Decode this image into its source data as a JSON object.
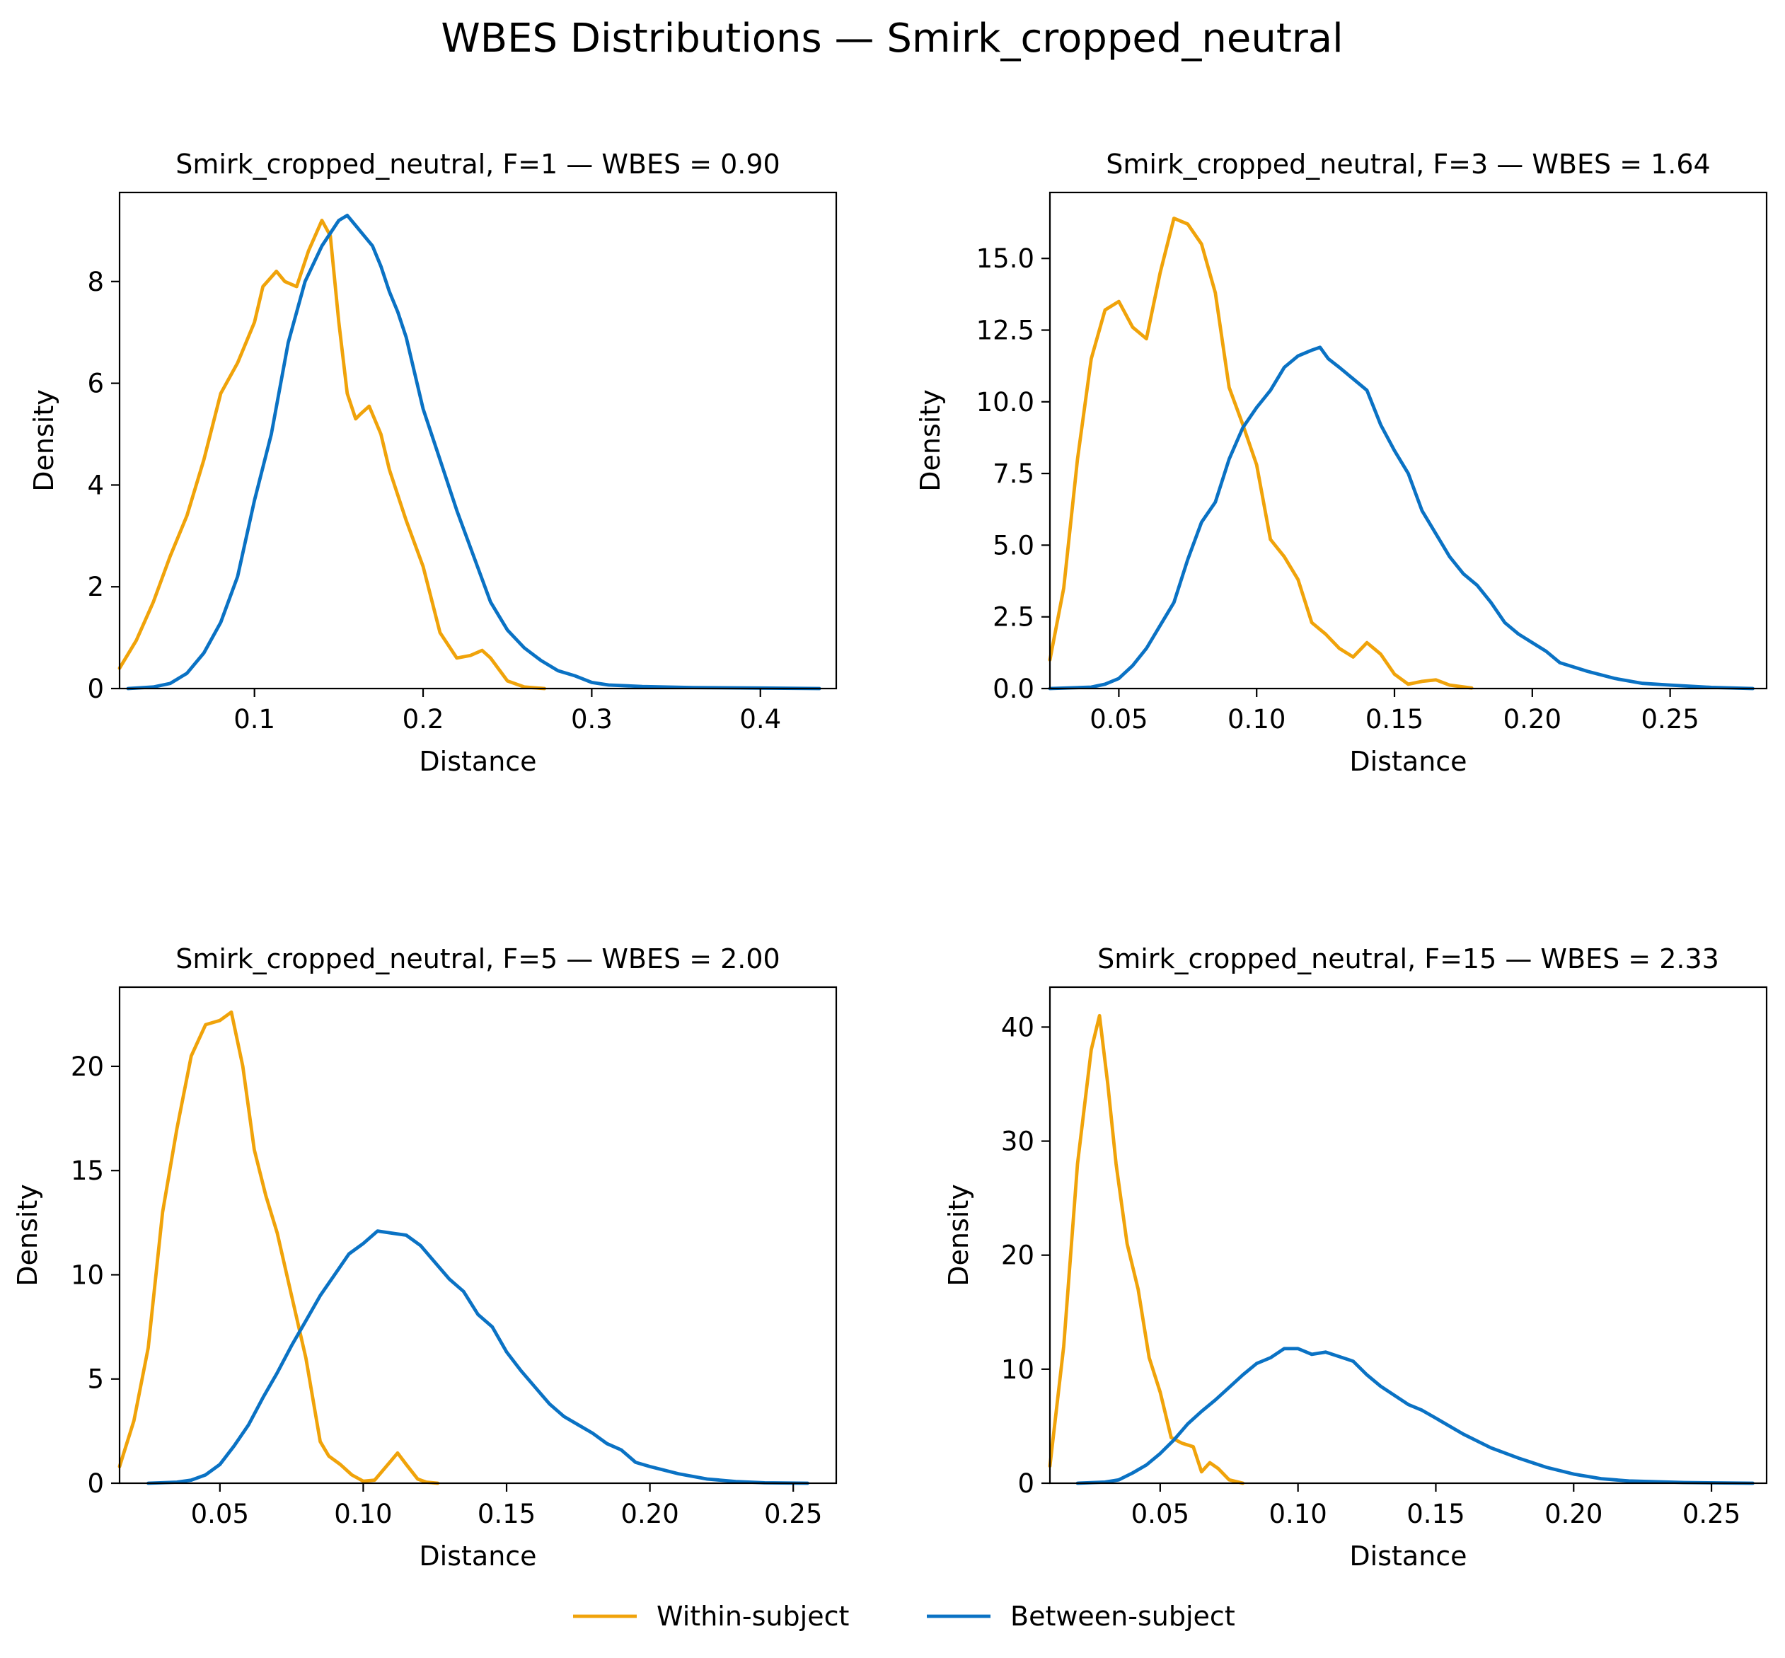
{
  "suptitle": "WBES Distributions — Smirk_cropped_neutral",
  "colors": {
    "within": "#f0a30a",
    "between": "#0a72c4"
  },
  "legend": {
    "placement": "bottom-center",
    "within_label": "Within-subject",
    "between_label": "Between-subject"
  },
  "chart_data": [
    {
      "type": "line",
      "title": "Smirk_cropped_neutral, F=1 — WBES = 0.90",
      "xlabel": "Distance",
      "ylabel": "Density",
      "xlim": [
        0.02,
        0.445
      ],
      "ylim": [
        0,
        9.75
      ],
      "xticks": [
        0.1,
        0.2,
        0.3,
        0.4
      ],
      "xtick_labels": [
        "0.1",
        "0.2",
        "0.3",
        "0.4"
      ],
      "yticks": [
        0,
        2,
        4,
        6,
        8
      ],
      "ytick_labels": [
        "0",
        "2",
        "4",
        "6",
        "8"
      ],
      "grid": false,
      "series": [
        {
          "name": "Within-subject",
          "color": "#f0a30a",
          "x": [
            0.02,
            0.03,
            0.04,
            0.05,
            0.06,
            0.07,
            0.08,
            0.09,
            0.1,
            0.105,
            0.113,
            0.118,
            0.125,
            0.132,
            0.14,
            0.145,
            0.15,
            0.155,
            0.16,
            0.163,
            0.168,
            0.175,
            0.18,
            0.19,
            0.2,
            0.21,
            0.22,
            0.228,
            0.235,
            0.24,
            0.25,
            0.26,
            0.272
          ],
          "y": [
            0.4,
            0.95,
            1.7,
            2.6,
            3.4,
            4.5,
            5.8,
            6.4,
            7.2,
            7.9,
            8.2,
            8.0,
            7.9,
            8.6,
            9.2,
            8.9,
            7.2,
            5.8,
            5.3,
            5.4,
            5.55,
            5.0,
            4.3,
            3.3,
            2.4,
            1.1,
            0.6,
            0.65,
            0.75,
            0.6,
            0.15,
            0.03,
            0
          ]
        },
        {
          "name": "Between-subject",
          "color": "#0a72c4",
          "x": [
            0.025,
            0.04,
            0.05,
            0.06,
            0.07,
            0.08,
            0.09,
            0.1,
            0.11,
            0.12,
            0.13,
            0.14,
            0.15,
            0.155,
            0.16,
            0.165,
            0.17,
            0.175,
            0.18,
            0.185,
            0.19,
            0.2,
            0.21,
            0.22,
            0.23,
            0.24,
            0.25,
            0.26,
            0.27,
            0.28,
            0.29,
            0.3,
            0.31,
            0.33,
            0.36,
            0.4,
            0.435
          ],
          "y": [
            0,
            0.03,
            0.1,
            0.3,
            0.7,
            1.3,
            2.2,
            3.7,
            5.0,
            6.8,
            8.0,
            8.7,
            9.2,
            9.3,
            9.1,
            8.9,
            8.7,
            8.3,
            7.8,
            7.4,
            6.9,
            5.5,
            4.5,
            3.5,
            2.6,
            1.7,
            1.15,
            0.8,
            0.55,
            0.35,
            0.25,
            0.12,
            0.07,
            0.04,
            0.02,
            0.01,
            0
          ]
        }
      ]
    },
    {
      "type": "line",
      "title": "Smirk_cropped_neutral, F=3 — WBES = 1.64",
      "xlabel": "Distance",
      "ylabel": "Density",
      "xlim": [
        0.025,
        0.285
      ],
      "ylim": [
        0,
        17.3
      ],
      "xticks": [
        0.05,
        0.1,
        0.15,
        0.2,
        0.25
      ],
      "xtick_labels": [
        "0.05",
        "0.10",
        "0.15",
        "0.20",
        "0.25"
      ],
      "yticks": [
        0,
        2.5,
        5,
        7.5,
        10,
        12.5,
        15
      ],
      "ytick_labels": [
        "0.0",
        "2.5",
        "5.0",
        "7.5",
        "10.0",
        "12.5",
        "15.0"
      ],
      "grid": false,
      "series": [
        {
          "name": "Within-subject",
          "color": "#f0a30a",
          "x": [
            0.025,
            0.03,
            0.035,
            0.04,
            0.045,
            0.05,
            0.055,
            0.06,
            0.065,
            0.07,
            0.075,
            0.08,
            0.085,
            0.09,
            0.095,
            0.1,
            0.105,
            0.11,
            0.115,
            0.12,
            0.125,
            0.13,
            0.135,
            0.14,
            0.145,
            0.15,
            0.155,
            0.16,
            0.165,
            0.17,
            0.178
          ],
          "y": [
            1.0,
            3.5,
            8.0,
            11.5,
            13.2,
            13.5,
            12.6,
            12.2,
            14.5,
            16.4,
            16.2,
            15.5,
            13.8,
            10.5,
            9.2,
            7.8,
            5.2,
            4.6,
            3.8,
            2.3,
            1.9,
            1.4,
            1.1,
            1.6,
            1.2,
            0.5,
            0.15,
            0.25,
            0.3,
            0.12,
            0.02
          ]
        },
        {
          "name": "Between-subject",
          "color": "#0a72c4",
          "x": [
            0.025,
            0.04,
            0.045,
            0.05,
            0.055,
            0.06,
            0.065,
            0.07,
            0.075,
            0.08,
            0.085,
            0.09,
            0.095,
            0.1,
            0.105,
            0.11,
            0.115,
            0.12,
            0.123,
            0.126,
            0.13,
            0.135,
            0.14,
            0.145,
            0.15,
            0.155,
            0.16,
            0.165,
            0.17,
            0.175,
            0.18,
            0.185,
            0.19,
            0.195,
            0.2,
            0.205,
            0.21,
            0.22,
            0.23,
            0.24,
            0.25,
            0.265,
            0.28
          ],
          "y": [
            0,
            0.05,
            0.15,
            0.35,
            0.8,
            1.4,
            2.2,
            3.0,
            4.5,
            5.8,
            6.5,
            8.0,
            9.1,
            9.8,
            10.4,
            11.2,
            11.6,
            11.8,
            11.9,
            11.5,
            11.2,
            10.8,
            10.4,
            9.2,
            8.3,
            7.5,
            6.2,
            5.4,
            4.6,
            4.0,
            3.6,
            3.0,
            2.3,
            1.9,
            1.6,
            1.3,
            0.9,
            0.6,
            0.35,
            0.18,
            0.12,
            0.04,
            0
          ]
        }
      ]
    },
    {
      "type": "line",
      "title": "Smirk_cropped_neutral, F=5 — WBES = 2.00",
      "xlabel": "Distance",
      "ylabel": "Density",
      "xlim": [
        0.015,
        0.265
      ],
      "ylim": [
        0,
        23.8
      ],
      "xticks": [
        0.05,
        0.1,
        0.15,
        0.2,
        0.25
      ],
      "xtick_labels": [
        "0.05",
        "0.10",
        "0.15",
        "0.20",
        "0.25"
      ],
      "yticks": [
        0,
        5,
        10,
        15,
        20
      ],
      "ytick_labels": [
        "0",
        "5",
        "10",
        "15",
        "20"
      ],
      "grid": false,
      "series": [
        {
          "name": "Within-subject",
          "color": "#f0a30a",
          "x": [
            0.015,
            0.02,
            0.025,
            0.03,
            0.035,
            0.04,
            0.045,
            0.05,
            0.054,
            0.058,
            0.062,
            0.066,
            0.07,
            0.075,
            0.08,
            0.085,
            0.088,
            0.092,
            0.096,
            0.1,
            0.104,
            0.108,
            0.112,
            0.115,
            0.119,
            0.122,
            0.126
          ],
          "y": [
            0.8,
            3.0,
            6.5,
            13.0,
            17.0,
            20.5,
            22.0,
            22.2,
            22.6,
            20.0,
            16.0,
            13.8,
            12.0,
            9.0,
            6.0,
            2.0,
            1.3,
            0.9,
            0.4,
            0.1,
            0.15,
            0.8,
            1.45,
            0.9,
            0.2,
            0.05,
            0
          ]
        },
        {
          "name": "Between-subject",
          "color": "#0a72c4",
          "x": [
            0.025,
            0.035,
            0.04,
            0.045,
            0.05,
            0.055,
            0.06,
            0.065,
            0.07,
            0.075,
            0.08,
            0.085,
            0.09,
            0.095,
            0.1,
            0.105,
            0.11,
            0.115,
            0.12,
            0.125,
            0.13,
            0.135,
            0.14,
            0.145,
            0.15,
            0.155,
            0.16,
            0.165,
            0.17,
            0.175,
            0.18,
            0.185,
            0.19,
            0.195,
            0.2,
            0.21,
            0.22,
            0.23,
            0.24,
            0.255
          ],
          "y": [
            0,
            0.05,
            0.15,
            0.4,
            0.9,
            1.8,
            2.8,
            4.1,
            5.3,
            6.6,
            7.8,
            9.0,
            10.0,
            11.0,
            11.5,
            12.1,
            12.0,
            11.9,
            11.4,
            10.6,
            9.8,
            9.2,
            8.1,
            7.5,
            6.3,
            5.4,
            4.6,
            3.8,
            3.2,
            2.8,
            2.4,
            1.9,
            1.6,
            1.0,
            0.8,
            0.45,
            0.2,
            0.08,
            0.02,
            0
          ]
        }
      ]
    },
    {
      "type": "line",
      "title": "Smirk_cropped_neutral, F=15 — WBES = 2.33",
      "xlabel": "Distance",
      "ylabel": "Density",
      "xlim": [
        0.01,
        0.27
      ],
      "ylim": [
        0,
        43.5
      ],
      "xticks": [
        0.05,
        0.1,
        0.15,
        0.2,
        0.25
      ],
      "xtick_labels": [
        "0.05",
        "0.10",
        "0.15",
        "0.20",
        "0.25"
      ],
      "yticks": [
        0,
        10,
        20,
        30,
        40
      ],
      "ytick_labels": [
        "0",
        "10",
        "20",
        "30",
        "40"
      ],
      "grid": false,
      "series": [
        {
          "name": "Within-subject",
          "color": "#f0a30a",
          "x": [
            0.01,
            0.015,
            0.02,
            0.025,
            0.028,
            0.031,
            0.034,
            0.038,
            0.042,
            0.046,
            0.05,
            0.054,
            0.058,
            0.062,
            0.065,
            0.068,
            0.071,
            0.075,
            0.08
          ],
          "y": [
            1.5,
            12.0,
            28.0,
            38.0,
            41.0,
            35.0,
            28.0,
            21.0,
            17.0,
            11.0,
            8.0,
            4.0,
            3.5,
            3.2,
            1.0,
            1.8,
            1.3,
            0.3,
            0
          ]
        },
        {
          "name": "Between-subject",
          "color": "#0a72c4",
          "x": [
            0.02,
            0.03,
            0.035,
            0.04,
            0.045,
            0.05,
            0.055,
            0.06,
            0.065,
            0.07,
            0.075,
            0.08,
            0.085,
            0.09,
            0.095,
            0.1,
            0.105,
            0.11,
            0.115,
            0.12,
            0.125,
            0.13,
            0.135,
            0.14,
            0.145,
            0.15,
            0.16,
            0.17,
            0.18,
            0.19,
            0.2,
            0.21,
            0.22,
            0.24,
            0.265
          ],
          "y": [
            0,
            0.1,
            0.3,
            0.9,
            1.6,
            2.6,
            3.8,
            5.2,
            6.3,
            7.3,
            8.4,
            9.5,
            10.5,
            11.0,
            11.8,
            11.8,
            11.3,
            11.5,
            11.1,
            10.7,
            9.5,
            8.5,
            7.7,
            6.9,
            6.4,
            5.7,
            4.3,
            3.1,
            2.2,
            1.4,
            0.8,
            0.4,
            0.2,
            0.06,
            0
          ]
        }
      ]
    }
  ]
}
